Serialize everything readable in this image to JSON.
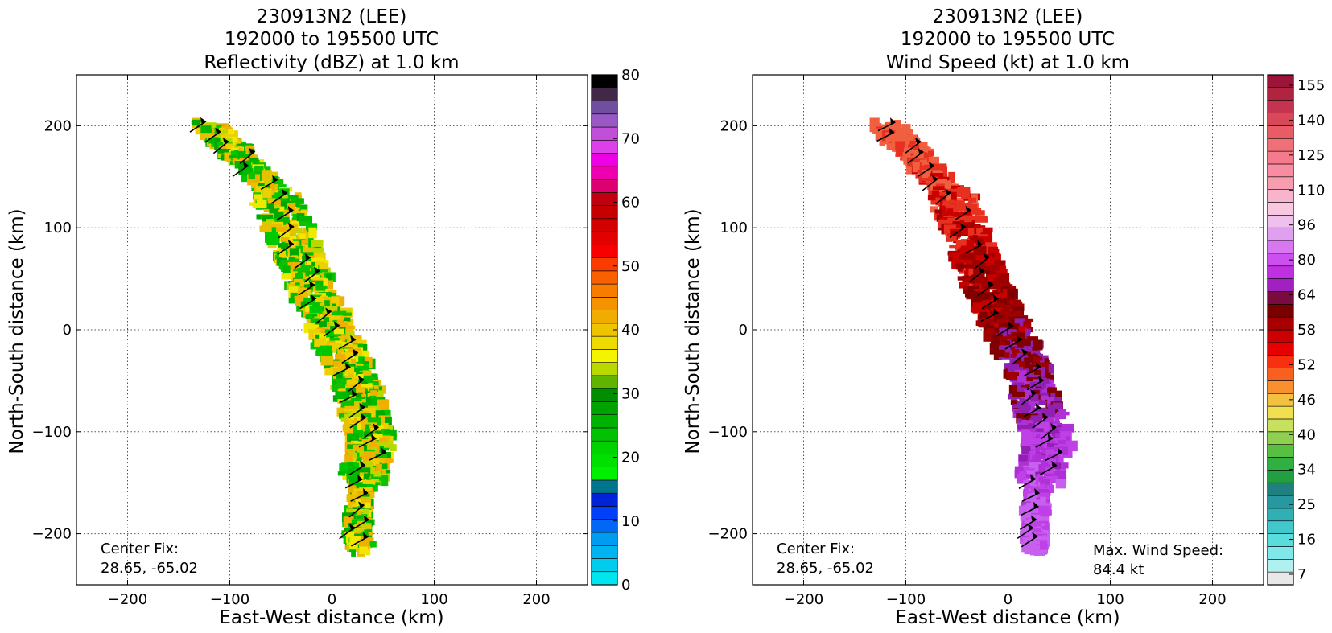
{
  "chart_data": [
    {
      "type": "heatmap",
      "title": [
        "230913N2 (LEE)",
        "192000 to 195500 UTC",
        "Reflectivity (dBZ) at 1.0 km"
      ],
      "xlabel": "East-West distance (km)",
      "ylabel": "North-South distance (km)",
      "xlim": [
        -250,
        250
      ],
      "ylim": [
        -250,
        250
      ],
      "xticks": [
        -200,
        -100,
        0,
        100,
        200
      ],
      "yticks": [
        -200,
        -100,
        0,
        100,
        200
      ],
      "grid": true,
      "annotations": [
        {
          "id": "center_fix_label",
          "text": "Center Fix:"
        },
        {
          "id": "center_fix_value",
          "text": "28.65, -65.02"
        }
      ],
      "colorbar": {
        "label": "dBZ",
        "range": [
          0,
          80
        ],
        "tick_labels": [
          "0",
          "10",
          "20",
          "30",
          "40",
          "50",
          "60",
          "70",
          "80"
        ],
        "colors": [
          "#00e5ee",
          "#00cdec",
          "#00b4f0",
          "#009cf2",
          "#0068f5",
          "#0040f8",
          "#0022d8",
          "#00758c",
          "#00ee00",
          "#00e000",
          "#00d200",
          "#00c200",
          "#00b200",
          "#00a200",
          "#008e00",
          "#60b400",
          "#b8d800",
          "#f4f400",
          "#eedc00",
          "#eec400",
          "#f0ac00",
          "#f59200",
          "#f87c00",
          "#f86000",
          "#fa3c00",
          "#f80000",
          "#e20000",
          "#d20000",
          "#c60000",
          "#c00010",
          "#dc0070",
          "#ee00b0",
          "#ee00e4",
          "#dc40e8",
          "#c050d8",
          "#9a58c4",
          "#704ea0",
          "#402848",
          "#000000"
        ]
      },
      "swath_track": [
        [
          -120,
          200
        ],
        [
          -90,
          170
        ],
        [
          -55,
          130
        ],
        [
          -35,
          80
        ],
        [
          -20,
          40
        ],
        [
          0,
          0
        ],
        [
          20,
          -40
        ],
        [
          30,
          -80
        ],
        [
          40,
          -110
        ],
        [
          30,
          -150
        ],
        [
          25,
          -190
        ],
        [
          28,
          -215
        ]
      ],
      "field_palette": [
        "#00a800",
        "#00b800",
        "#00c800",
        "#10c000",
        "#b8d800",
        "#f0e800",
        "#eed000",
        "#e8c000",
        "#f0b000"
      ]
    },
    {
      "type": "heatmap",
      "title": [
        "230913N2 (LEE)",
        "192000 to 195500 UTC",
        "Wind Speed (kt) at 1.0 km"
      ],
      "xlabel": "East-West distance (km)",
      "ylabel": "North-South distance (km)",
      "xlim": [
        -250,
        250
      ],
      "ylim": [
        -250,
        250
      ],
      "xticks": [
        -200,
        -100,
        0,
        100,
        200
      ],
      "yticks": [
        -200,
        -100,
        0,
        100,
        200
      ],
      "grid": true,
      "annotations": [
        {
          "id": "center_fix_label",
          "text": "Center Fix:"
        },
        {
          "id": "center_fix_value",
          "text": "28.65, -65.02"
        },
        {
          "id": "max_wind_label",
          "text": "Max. Wind Speed:"
        },
        {
          "id": "max_wind_value",
          "text": "84.4 kt"
        }
      ],
      "colorbar": {
        "label": "kt",
        "tick_labels": [
          "7",
          "16",
          "25",
          "34",
          "40",
          "46",
          "52",
          "58",
          "64",
          "80",
          "96",
          "110",
          "125",
          "140",
          "155"
        ],
        "colors": [
          "#e8e8e8",
          "#b0f0f0",
          "#80e8e8",
          "#58dcdc",
          "#40c8cc",
          "#30b0b4",
          "#2898a0",
          "#208080",
          "#20a040",
          "#30b040",
          "#58c040",
          "#90d050",
          "#c8e060",
          "#f0e050",
          "#f4c040",
          "#f89030",
          "#f86020",
          "#f83010",
          "#e80000",
          "#cc0000",
          "#a80000",
          "#7a0000",
          "#780c40",
          "#a020c0",
          "#c030e0",
          "#cc50f0",
          "#d878f0",
          "#e0a0f0",
          "#f0c0ec",
          "#f8c8e0",
          "#f8b4cc",
          "#f89cb0",
          "#f88ca0",
          "#f47a8c",
          "#f07078",
          "#e85c68",
          "#d84858",
          "#c43450",
          "#b02440",
          "#9c1438"
        ]
      },
      "swath_track": [
        [
          -120,
          200
        ],
        [
          -90,
          170
        ],
        [
          -55,
          130
        ],
        [
          -35,
          80
        ],
        [
          -20,
          40
        ],
        [
          0,
          0
        ],
        [
          20,
          -40
        ],
        [
          30,
          -80
        ],
        [
          40,
          -110
        ],
        [
          30,
          -150
        ],
        [
          25,
          -190
        ],
        [
          28,
          -215
        ]
      ],
      "field_palette": [
        "#f06040",
        "#e83020",
        "#c80000",
        "#a00000",
        "#800000",
        "#9020b0",
        "#b030d8",
        "#c040e8",
        "#c860ee"
      ]
    }
  ]
}
